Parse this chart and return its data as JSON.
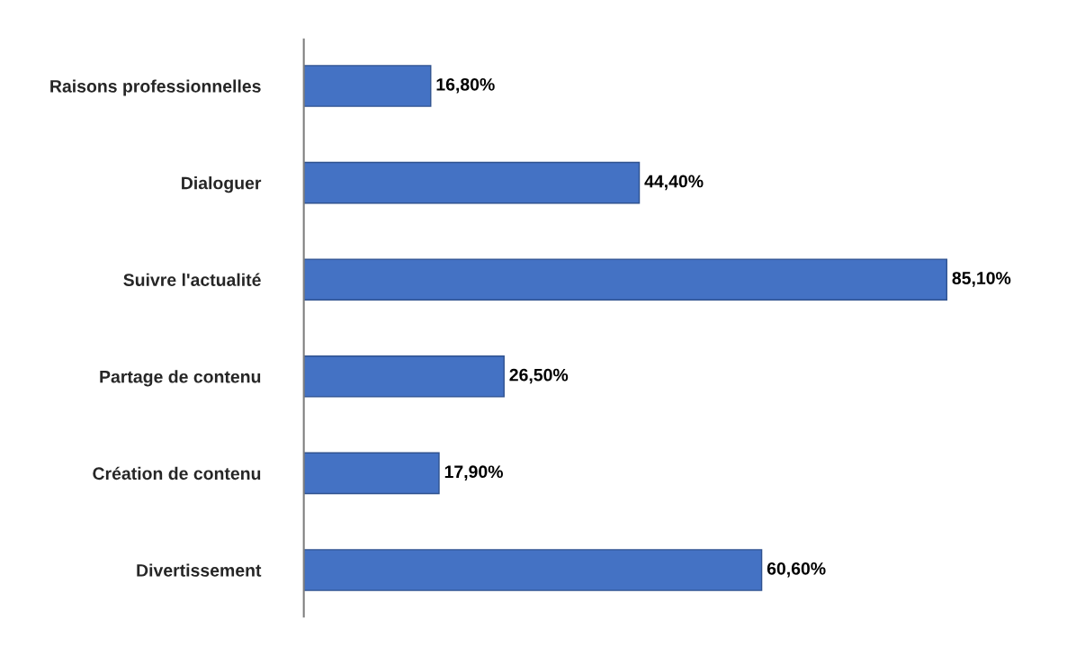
{
  "chart_data": {
    "type": "bar",
    "orientation": "horizontal",
    "categories": [
      "Raisons professionnelles",
      "Dialoguer",
      "Suivre l'actualité",
      "Partage de contenu",
      "Création de contenu",
      "Divertissement"
    ],
    "values": [
      16.8,
      44.4,
      85.1,
      26.5,
      17.9,
      60.6
    ],
    "value_labels": [
      "16,80%",
      "44,40%",
      "85,10%",
      "26,50%",
      "17,90%",
      "60,60%"
    ],
    "color": "#4472c4",
    "grid": false,
    "legend": false
  }
}
